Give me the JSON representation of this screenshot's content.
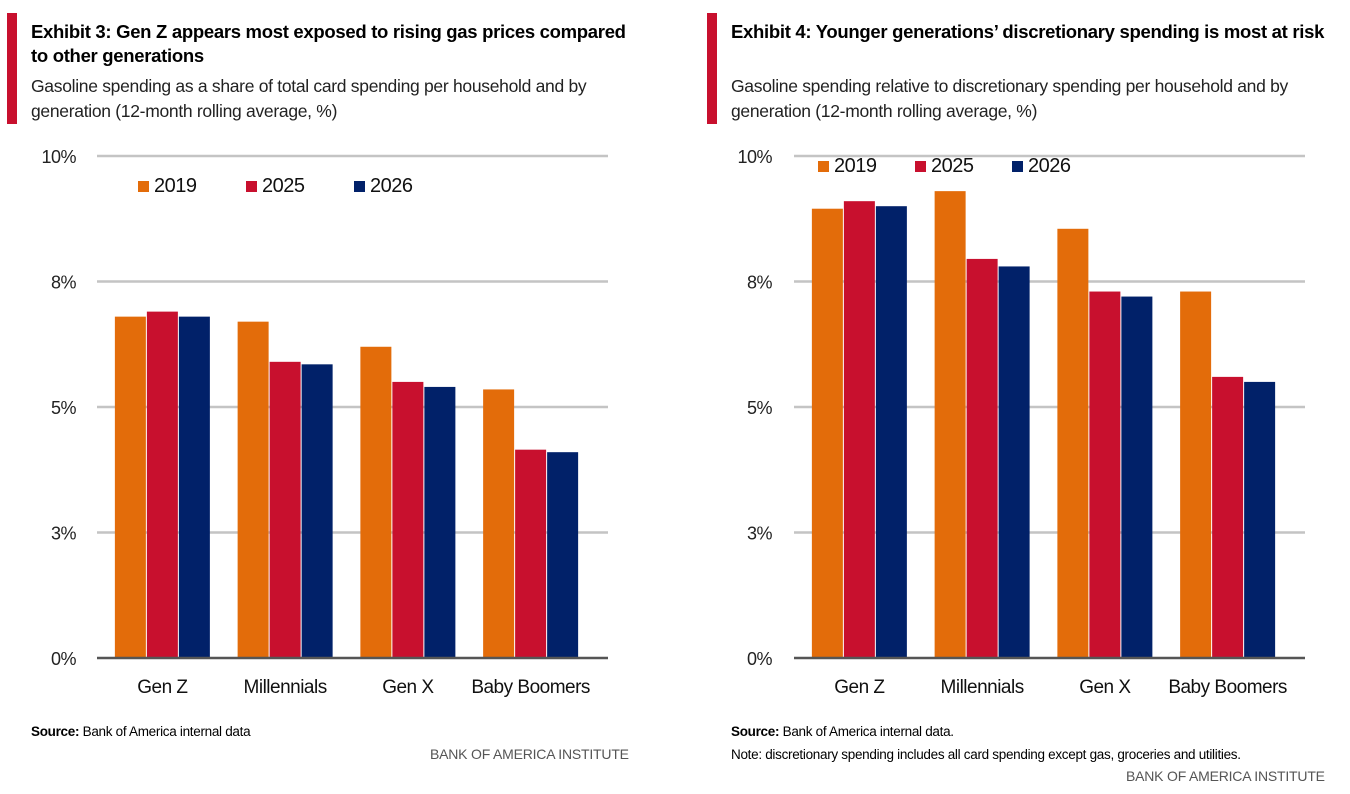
{
  "chart_data": [
    {
      "type": "bar",
      "title": "Exhibit 3: Gen Z appears most exposed to rising gas prices compared to other generations",
      "subtitle": "Gasoline spending as a share of total card spending per household and by generation (12-month rolling average, %)",
      "categories": [
        "Gen Z",
        "Millennials",
        "Gen X",
        "Baby Boomers"
      ],
      "series": [
        {
          "name": "2019",
          "color": "#e36c0a",
          "values": [
            6.8,
            6.7,
            6.2,
            5.35
          ]
        },
        {
          "name": "2025",
          "color": "#c8102e",
          "values": [
            6.9,
            5.9,
            5.5,
            4.15
          ]
        },
        {
          "name": "2026",
          "color": "#012169",
          "values": [
            6.8,
            5.85,
            5.4,
            4.1
          ]
        }
      ],
      "ylim": [
        0,
        10
      ],
      "yticks": [
        0,
        2.5,
        5,
        7.5,
        10
      ],
      "ytick_labels": [
        "0%",
        "3%",
        "5%",
        "8%",
        "10%"
      ],
      "xlabel": "",
      "ylabel": "",
      "grid": true,
      "legend": "top-center",
      "source_label": "Source:",
      "source_text": "Bank of America internal data",
      "note": "",
      "brand": "BANK OF AMERICA INSTITUTE"
    },
    {
      "type": "bar",
      "title": "Exhibit 4: Younger generations’ discretionary spending is most at risk",
      "subtitle": "Gasoline spending relative to discretionary spending per household and by generation (12-month rolling average, %)",
      "categories": [
        "Gen Z",
        "Millennials",
        "Gen X",
        "Baby Boomers"
      ],
      "series": [
        {
          "name": "2019",
          "color": "#e36c0a",
          "values": [
            8.95,
            9.3,
            8.55,
            7.3
          ]
        },
        {
          "name": "2025",
          "color": "#c8102e",
          "values": [
            9.1,
            7.95,
            7.3,
            5.6
          ]
        },
        {
          "name": "2026",
          "color": "#012169",
          "values": [
            9.0,
            7.8,
            7.2,
            5.5
          ]
        }
      ],
      "ylim": [
        0,
        10
      ],
      "yticks": [
        0,
        2.5,
        5,
        7.5,
        10
      ],
      "ytick_labels": [
        "0%",
        "3%",
        "5%",
        "8%",
        "10%"
      ],
      "xlabel": "",
      "ylabel": "",
      "grid": true,
      "legend": "top-left",
      "source_label": "Source:",
      "source_text": "Bank of America internal data.",
      "note": "Note: discretionary spending includes all card spending except gas, groceries and utilities.",
      "brand": "BANK OF AMERICA INSTITUTE"
    }
  ]
}
